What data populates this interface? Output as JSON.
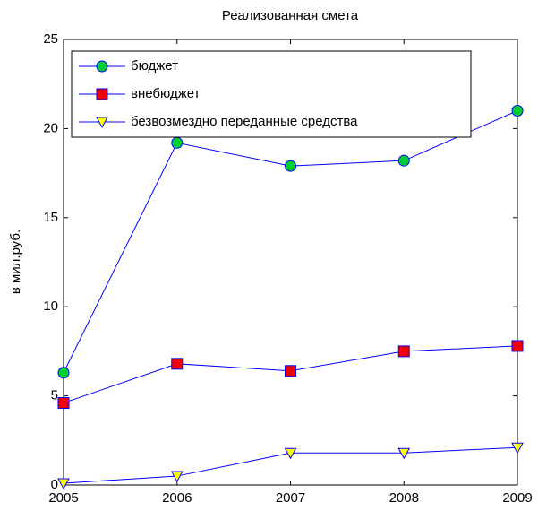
{
  "chart_data": {
    "type": "line",
    "title": "Реализованная смета",
    "ylabel": "в мил.руб.",
    "x": [
      2005,
      2006,
      2007,
      2008,
      2009
    ],
    "xlim": [
      2005,
      2009
    ],
    "xticks": [
      2005,
      2006,
      2007,
      2008,
      2009
    ],
    "ylim": [
      0,
      25
    ],
    "yticks": [
      0,
      5,
      10,
      15,
      20,
      25
    ],
    "legend_location": "northwest",
    "series": [
      {
        "name": "бюджет",
        "color": "#0000ff",
        "marker": "circle",
        "marker_color": "#00cc33",
        "values": [
          6.3,
          19.2,
          17.9,
          18.2,
          21.0
        ]
      },
      {
        "name": "внебюджет",
        "color": "#0000ff",
        "marker": "square",
        "marker_color": "#ee0000",
        "values": [
          4.6,
          6.8,
          6.4,
          7.5,
          7.8
        ]
      },
      {
        "name": "безвозмездно переданные средства",
        "color": "#0000ff",
        "marker": "triangle-down",
        "marker_color": "#ffff00",
        "values": [
          0.1,
          0.5,
          1.8,
          1.8,
          2.1
        ]
      }
    ]
  }
}
